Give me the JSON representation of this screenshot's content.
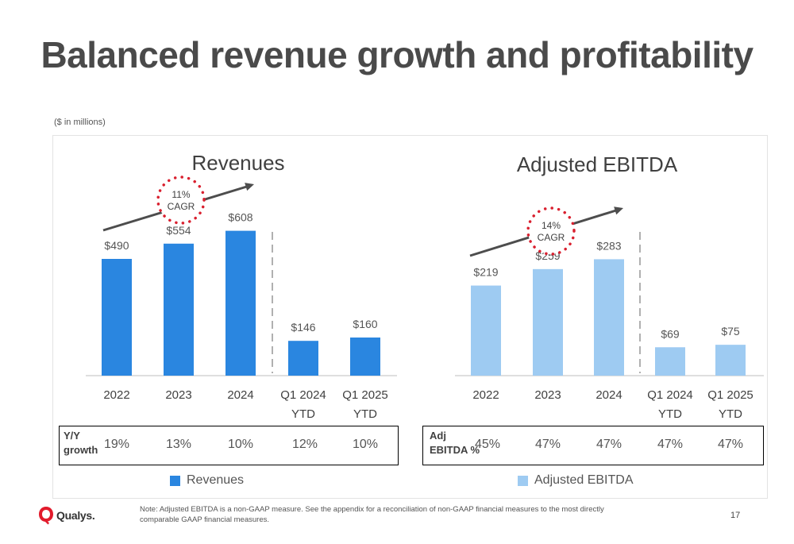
{
  "title": "Balanced revenue growth and profitability",
  "units_note": "($ in millions)",
  "colors": {
    "revenue": "#2a86e0",
    "ebitda": "#9ecbf2",
    "arrow": "#4d4d4d",
    "cagr_dots": "#d9202f"
  },
  "chart_data": [
    {
      "type": "bar",
      "title": "Revenues",
      "categories": [
        "2022",
        "2023",
        "2024",
        "Q1 2024 YTD",
        "Q1 2025 YTD"
      ],
      "category_lines": [
        [
          "2022"
        ],
        [
          "2023"
        ],
        [
          "2024"
        ],
        [
          "Q1 2024",
          "YTD"
        ],
        [
          "Q1 2025",
          "YTD"
        ]
      ],
      "series": [
        {
          "name": "Revenues",
          "values": [
            490,
            554,
            608,
            146,
            160
          ]
        }
      ],
      "value_labels": [
        "$490",
        "$554",
        "$608",
        "$146",
        "$160"
      ],
      "ylim": [
        0,
        650
      ],
      "cagr_label": [
        "11%",
        "CAGR"
      ],
      "growth_row": {
        "label": [
          "Y/Y",
          "growth"
        ],
        "values": [
          "19%",
          "13%",
          "10%",
          "12%",
          "10%"
        ]
      },
      "legend": "Revenues"
    },
    {
      "type": "bar",
      "title": "Adjusted EBITDA",
      "categories": [
        "2022",
        "2023",
        "2024",
        "Q1 2024 YTD",
        "Q1 2025 YTD"
      ],
      "category_lines": [
        [
          "2022"
        ],
        [
          "2023"
        ],
        [
          "2024"
        ],
        [
          "Q1 2024",
          "YTD"
        ],
        [
          "Q1 2025",
          "YTD"
        ]
      ],
      "series": [
        {
          "name": "Adjusted EBITDA",
          "values": [
            219,
            259,
            283,
            69,
            75
          ]
        }
      ],
      "value_labels": [
        "$219",
        "$259",
        "$283",
        "$69",
        "$75"
      ],
      "ylim": [
        0,
        390
      ],
      "cagr_label": [
        "14%",
        "CAGR"
      ],
      "growth_row": {
        "label": [
          "Adj",
          "EBITDA %"
        ],
        "values": [
          "45%",
          "47%",
          "47%",
          "47%",
          "47%"
        ]
      },
      "legend": "Adjusted EBITDA"
    }
  ],
  "footer": {
    "brand": "Qualys.",
    "note": "Note:  Adjusted EBITDA is a non-GAAP measure. See the appendix for a reconciliation of non-GAAP financial measures to the most directly comparable GAAP financial measures.",
    "page_number": "17"
  }
}
